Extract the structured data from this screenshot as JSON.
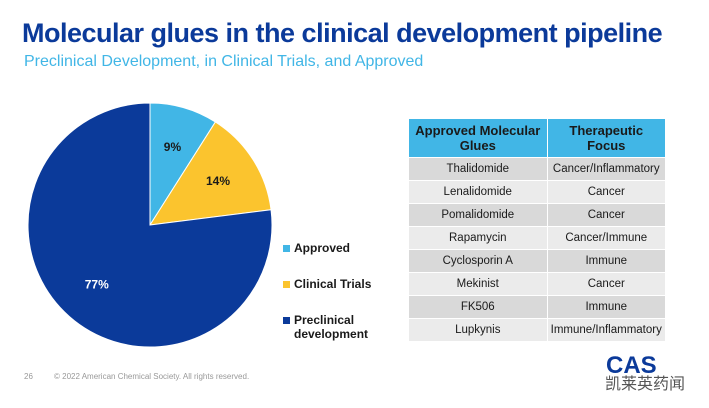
{
  "chart_data": {
    "type": "pie",
    "title": "Molecular glues in the clinical development pipeline",
    "subtitle": "Preclinical Development, in Clinical Trials, and Approved",
    "categories": [
      "Approved",
      "Clinical Trials",
      "Preclinical development"
    ],
    "values": [
      9,
      14,
      77
    ],
    "value_labels": [
      "9%",
      "14%",
      "77%"
    ],
    "colors": [
      "#41b6e6",
      "#fbc42e",
      "#0b3a9a"
    ],
    "label_colors": [
      "#1a1a1a",
      "#1a1a1a",
      "#ffffff"
    ]
  },
  "table": {
    "header": [
      "Approved Molecular Glues",
      "Therapeutic Focus"
    ],
    "rows": [
      [
        "Thalidomide",
        "Cancer/Inflammatory"
      ],
      [
        "Lenalidomide",
        "Cancer"
      ],
      [
        "Pomalidomide",
        "Cancer"
      ],
      [
        "Rapamycin",
        "Cancer/Immune"
      ],
      [
        "Cyclosporin A",
        "Immune"
      ],
      [
        "Mekinist",
        "Cancer"
      ],
      [
        "FK506",
        "Immune"
      ],
      [
        "Lupkynis",
        "Immune/Inflammatory"
      ]
    ]
  },
  "footer": {
    "page": "26",
    "copyright": "© 2022 American Chemical Society. All rights reserved.",
    "logo": "CAS",
    "watermark": "凯莱英药闻"
  }
}
